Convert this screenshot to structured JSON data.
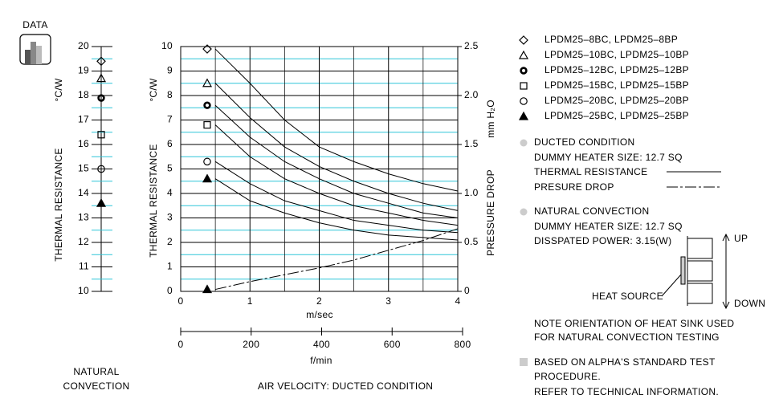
{
  "icon_label": "DATA",
  "chart_data": [
    {
      "type": "scatter",
      "ylabel": "THERMAL  RESISTANCE",
      "yunit": "°C/W",
      "xlabel": [
        "NATURAL",
        "CONVECTION"
      ],
      "ylim": [
        10,
        20
      ],
      "yticks": [
        10,
        11,
        12,
        13,
        14,
        15,
        16,
        17,
        18,
        19,
        20
      ],
      "yminor": [
        10.5,
        11.5,
        12.5,
        13.5,
        14.5,
        15.5,
        16.5,
        17.5,
        18.5,
        19.5
      ],
      "series": [
        {
          "marker": "diamond",
          "color": "#000000",
          "values": [
            19.4
          ]
        },
        {
          "marker": "triangle",
          "color": "#000000",
          "values": [
            18.7
          ]
        },
        {
          "marker": "circle-bold",
          "color": "#000000",
          "values": [
            17.9
          ]
        },
        {
          "marker": "square",
          "color": "#000000",
          "values": [
            16.4
          ]
        },
        {
          "marker": "circle",
          "color": "#000000",
          "values": [
            15.0
          ]
        },
        {
          "marker": "triangle-filled",
          "color": "#000000",
          "values": [
            13.6
          ]
        }
      ]
    },
    {
      "type": "line",
      "title": "AIR VELOCITY:  DUCTED CONDITION",
      "ylabel": "THERMAL  RESISTANCE",
      "yunit": "°C/W",
      "y2label": "PRESSURE  DROP",
      "y2unit": "mm H₂O",
      "xlabel": "m/sec",
      "x2label": "f/min",
      "x": [
        0.5,
        1,
        1.5,
        2,
        2.5,
        3,
        3.5,
        4
      ],
      "xlim": [
        0,
        4
      ],
      "xticks": [
        0,
        1,
        2,
        3,
        4
      ],
      "xminor": [
        0.5,
        1.5,
        2.5,
        3.5
      ],
      "x2lim": [
        0,
        800
      ],
      "x2ticks": [
        0,
        200,
        400,
        600,
        800
      ],
      "ylim": [
        0,
        10
      ],
      "yticks": [
        0,
        1,
        2,
        3,
        4,
        5,
        6,
        7,
        8,
        9,
        10
      ],
      "yminor": [
        0.5,
        1.5,
        2.5,
        3.5,
        4.5,
        5.5,
        6.5,
        7.5,
        8.5,
        9.5
      ],
      "y2lim": [
        0,
        2.5
      ],
      "y2ticks": [
        0,
        0.5,
        {
          "value": 1,
          "label": "1.0"
        },
        1.5,
        {
          "value": 2,
          "label": "2.0"
        },
        2.5
      ],
      "grid": true,
      "series": [
        {
          "name": "LPDM25–8BC,  LPDM25–8BP",
          "marker": "diamond",
          "color": "#000000",
          "values": [
            9.9,
            8.5,
            7.0,
            5.9,
            5.3,
            4.8,
            4.4,
            4.1
          ]
        },
        {
          "name": "LPDM25–10BC,  LPDM25–10BP",
          "marker": "triangle",
          "color": "#000000",
          "values": [
            8.5,
            7.1,
            5.9,
            5.1,
            4.5,
            4.0,
            3.6,
            3.3
          ]
        },
        {
          "name": "LPDM25–12BC,  LPDM25–12BP",
          "marker": "circle-bold",
          "color": "#000000",
          "values": [
            7.6,
            6.3,
            5.3,
            4.6,
            4.0,
            3.6,
            3.2,
            3.0
          ]
        },
        {
          "name": "LPDM25–15BC,  LPDM25–15BP",
          "marker": "square",
          "color": "#000000",
          "values": [
            6.8,
            5.5,
            4.6,
            4.0,
            3.5,
            3.2,
            2.9,
            2.7
          ]
        },
        {
          "name": "LPDM25–20BC,  LPDM25–20BP",
          "marker": "circle",
          "color": "#000000",
          "values": [
            5.3,
            4.4,
            3.7,
            3.3,
            2.9,
            2.7,
            2.5,
            2.4
          ]
        },
        {
          "name": "LPDM25–25BC,  LPDM25–25BP",
          "marker": "triangle-filled",
          "color": "#000000",
          "values": [
            4.6,
            3.7,
            3.2,
            2.8,
            2.5,
            2.3,
            2.2,
            2.1
          ]
        },
        {
          "axis": "y2",
          "marker": "triangle-filled",
          "color": "#000000",
          "dash": "dash-dot",
          "values": [
            0.02,
            0.1,
            0.17,
            0.24,
            0.32,
            0.42,
            0.52,
            0.64
          ]
        }
      ]
    }
  ],
  "notes": {
    "ducted": {
      "title": "DUCTED CONDITION",
      "heater": "DUMMY HEATER SIZE: 12.7 SQ",
      "thermal": "THERMAL RESISTANCE",
      "pressure": "PRESURE DROP"
    },
    "natural": {
      "title": "NATURAL CONVECTION",
      "heater": "DUMMY HEATER SIZE: 12.7 SQ",
      "power": "DISSPATED POWER: 3.15(W)"
    },
    "diagram": {
      "up": "UP",
      "down": "DOWN",
      "source": "HEAT SOURCE"
    },
    "orientation": [
      "NOTE ORIENTATION OF HEAT SINK USED",
      "FOR NATURAL CONVECTION TESTING"
    ],
    "standard": [
      "BASED ON ALPHA'S STANDARD TEST",
      "PROCEDURE.",
      "REFER TO TECHNICAL INFORMATION."
    ]
  }
}
